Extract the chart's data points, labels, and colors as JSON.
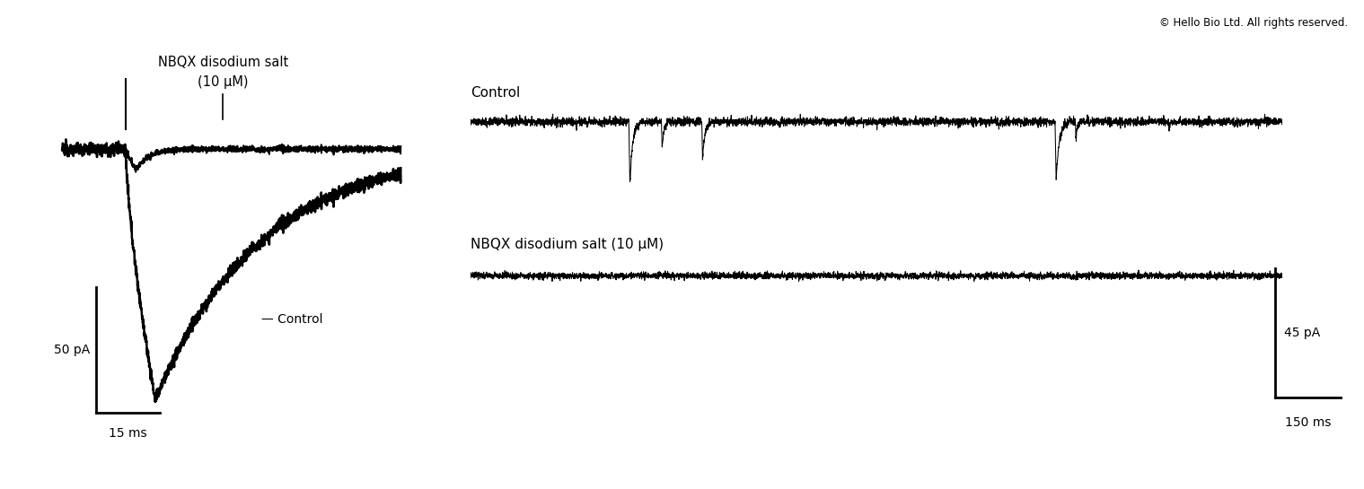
{
  "background_color": "#ffffff",
  "copyright_text": "© Hello Bio Ltd. All rights reserved.",
  "left_panel": {
    "title_nbqx": "NBQX disodium salt",
    "title_conc": "(10 μM)",
    "control_label": "— Control",
    "scale_bar_x": "15 ms",
    "scale_bar_y": "50 pA"
  },
  "right_panel": {
    "control_label": "Control",
    "nbqx_label": "NBQX disodium salt (10 μM)",
    "scale_bar_x": "150 ms",
    "scale_bar_y": "45 pA"
  },
  "line_color": "#000000",
  "line_width": 1.5
}
